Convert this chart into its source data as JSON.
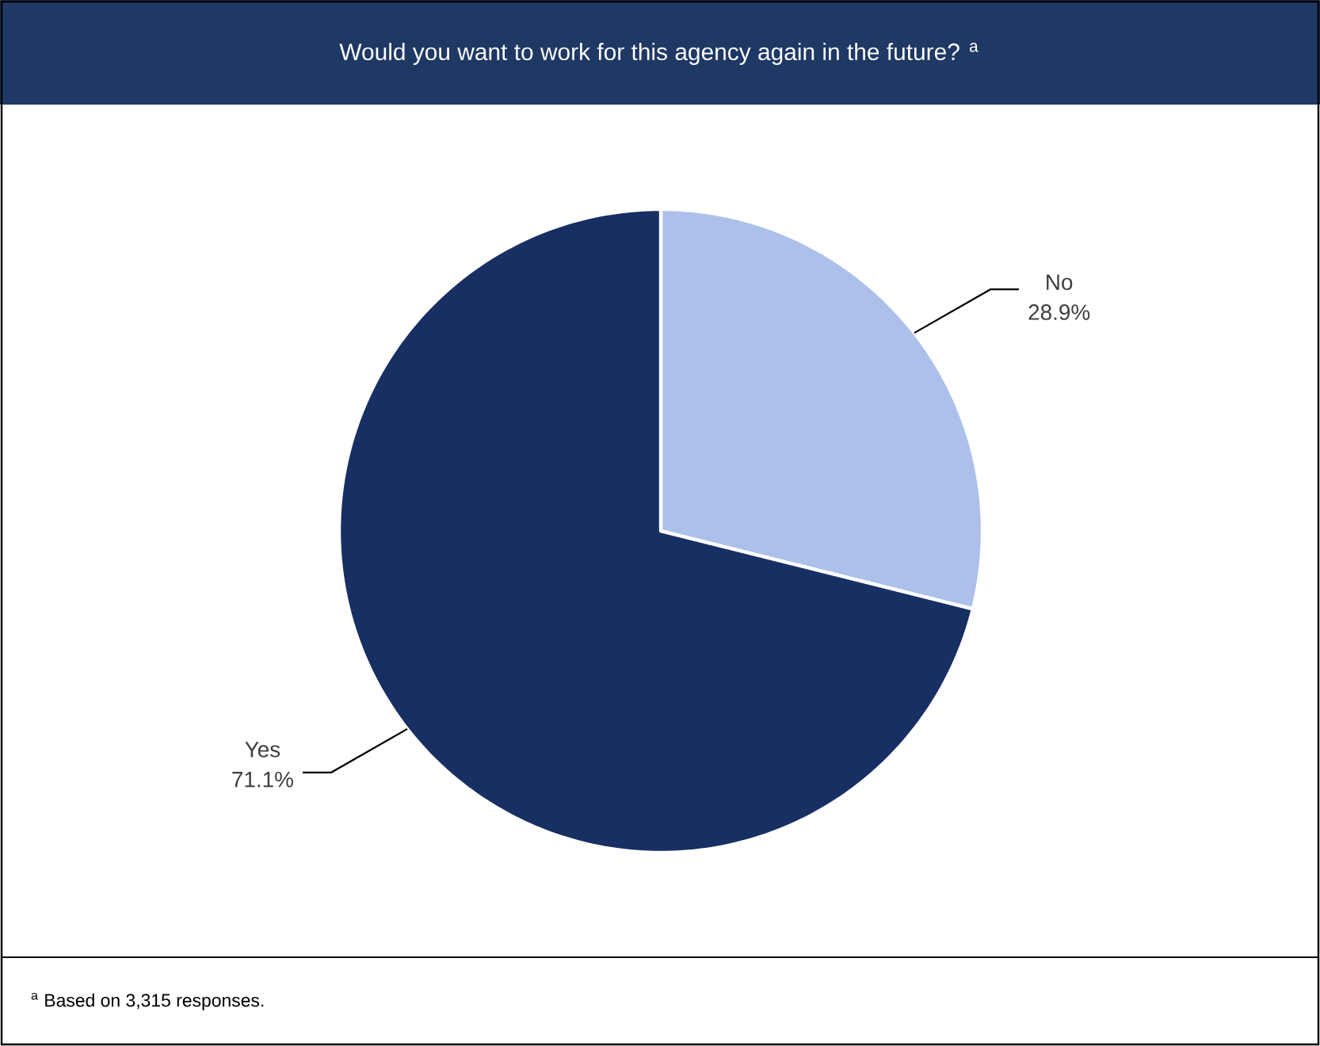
{
  "chart_data": {
    "type": "pie",
    "title": "Would you want to work for this agency again in the future? $^{a}$",
    "categories": [
      "No",
      "Yes"
    ],
    "values": [
      28.9,
      71.1
    ],
    "value_labels": [
      "28.9%",
      "71.1%"
    ],
    "colors": [
      "#adc0ea",
      "#182f63"
    ],
    "annotations": [
      "$^{a}$ Based on 3,315 responses."
    ]
  }
}
